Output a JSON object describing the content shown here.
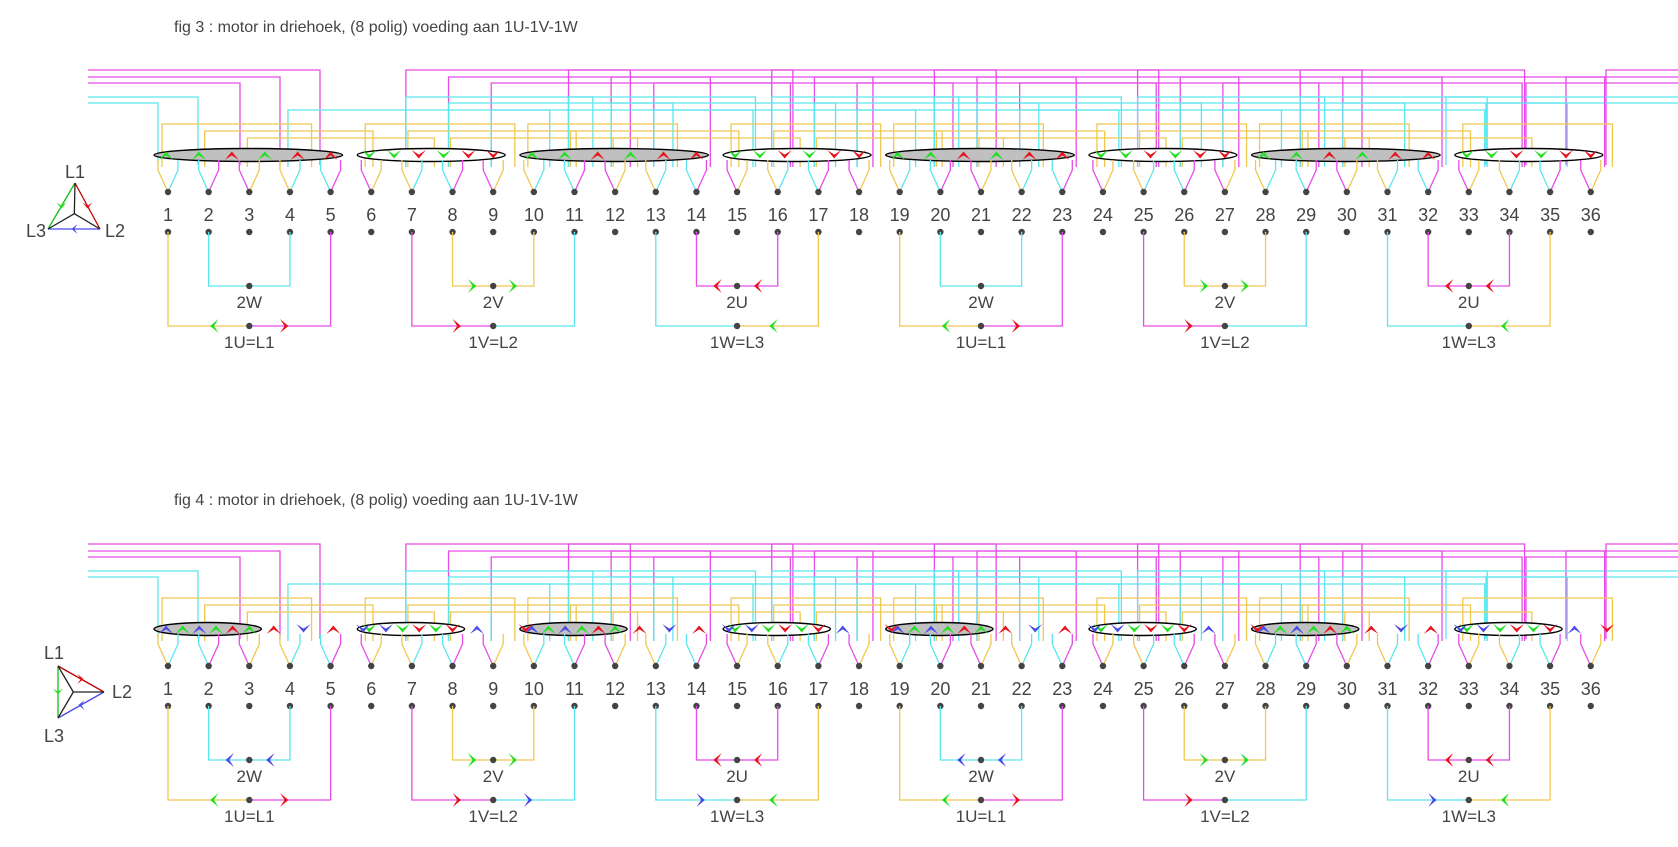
{
  "colors": {
    "L1": "#e64ce6",
    "L2": "#f0c850",
    "L3": "#5ae6ee",
    "red": "#e8101a",
    "green": "#20e020",
    "blue": "#4a4ae8",
    "dot": "#444444",
    "coil_fill": "#c0c0c0"
  },
  "slot_count": 36,
  "slot_numbers": [
    "1",
    "2",
    "3",
    "4",
    "5",
    "6",
    "7",
    "8",
    "9",
    "10",
    "11",
    "12",
    "13",
    "14",
    "15",
    "16",
    "17",
    "18",
    "19",
    "20",
    "21",
    "22",
    "23",
    "24",
    "25",
    "26",
    "27",
    "28",
    "29",
    "30",
    "31",
    "32",
    "33",
    "34",
    "35",
    "36"
  ],
  "figures": [
    {
      "id": "fig3",
      "title": "fig 3 : motor in driehoek,   (8 polig)   voeding aan 1U-1V-1W",
      "triangle": {
        "top": "L1",
        "left": "L3",
        "right": "L2",
        "layout": "up"
      },
      "coil_groups": [
        {
          "slots": [
            1,
            5
          ],
          "filled": true,
          "arrows": [
            "green-up",
            "green-up",
            "red-up",
            "green-up",
            "red-up",
            "red-up"
          ]
        },
        {
          "slots": [
            6,
            9
          ],
          "filled": false,
          "arrows": [
            "green-down",
            "green-down",
            "red-down",
            "green-down",
            "red-down",
            "red-down"
          ]
        },
        {
          "slots": [
            10,
            14
          ],
          "filled": true,
          "arrows": [
            "green-up",
            "green-up",
            "red-up",
            "green-up",
            "red-up",
            "red-up"
          ]
        },
        {
          "slots": [
            15,
            18
          ],
          "filled": false,
          "arrows": [
            "green-down",
            "green-down",
            "red-down",
            "green-down",
            "red-down",
            "red-down"
          ]
        },
        {
          "slots": [
            19,
            23
          ],
          "filled": true,
          "arrows": [
            "green-up",
            "green-up",
            "red-up",
            "green-up",
            "red-up",
            "red-up"
          ]
        },
        {
          "slots": [
            24,
            27
          ],
          "filled": false,
          "arrows": [
            "green-down",
            "green-down",
            "red-down",
            "green-down",
            "red-down",
            "red-down"
          ]
        },
        {
          "slots": [
            28,
            32
          ],
          "filled": true,
          "arrows": [
            "green-up",
            "green-up",
            "red-up",
            "green-up",
            "red-up",
            "red-up"
          ]
        },
        {
          "slots": [
            33,
            36
          ],
          "filled": false,
          "arrows": [
            "green-down",
            "green-down",
            "red-down",
            "green-down",
            "red-down",
            "red-down"
          ]
        }
      ],
      "loose_arrows": [],
      "bottom_groups": [
        {
          "inner": [
            2,
            4
          ],
          "outer": [
            1,
            5
          ],
          "inner_label": "2W",
          "outer_label": "1U=L1",
          "inner_color": "L3",
          "outer_left": "L2",
          "outer_right": "L1",
          "inner_arrows": [],
          "outer_arrows": [
            {
              "pos": "left",
              "color": "green",
              "dir": "left"
            },
            {
              "pos": "right",
              "color": "red",
              "dir": "right"
            }
          ]
        },
        {
          "inner": [
            8,
            10
          ],
          "outer": [
            7,
            11
          ],
          "inner_label": "2V",
          "outer_label": "1V=L2",
          "inner_color": "L2",
          "outer_left": "L1",
          "outer_right": "L3",
          "inner_arrows": [
            {
              "pos": "left",
              "color": "green",
              "dir": "right"
            },
            {
              "pos": "right",
              "color": "green",
              "dir": "right"
            }
          ],
          "outer_arrows": [
            {
              "pos": "left",
              "color": "red",
              "dir": "right"
            }
          ]
        },
        {
          "inner": [
            14,
            16
          ],
          "outer": [
            13,
            17
          ],
          "inner_label": "2U",
          "outer_label": "1W=L3",
          "inner_color": "L1",
          "outer_left": "L3",
          "outer_right": "L2",
          "inner_arrows": [
            {
              "pos": "left",
              "color": "red",
              "dir": "left"
            },
            {
              "pos": "right",
              "color": "red",
              "dir": "left"
            }
          ],
          "outer_arrows": [
            {
              "pos": "right",
              "color": "green",
              "dir": "left"
            }
          ]
        },
        {
          "inner": [
            20,
            22
          ],
          "outer": [
            19,
            23
          ],
          "inner_label": "2W",
          "outer_label": "1U=L1",
          "inner_color": "L3",
          "outer_left": "L2",
          "outer_right": "L1",
          "inner_arrows": [],
          "outer_arrows": [
            {
              "pos": "left",
              "color": "green",
              "dir": "left"
            },
            {
              "pos": "right",
              "color": "red",
              "dir": "right"
            }
          ]
        },
        {
          "inner": [
            26,
            28
          ],
          "outer": [
            25,
            29
          ],
          "inner_label": "2V",
          "outer_label": "1V=L2",
          "inner_color": "L2",
          "outer_left": "L1",
          "outer_right": "L3",
          "inner_arrows": [
            {
              "pos": "left",
              "color": "green",
              "dir": "right"
            },
            {
              "pos": "right",
              "color": "green",
              "dir": "right"
            }
          ],
          "outer_arrows": [
            {
              "pos": "left",
              "color": "red",
              "dir": "right"
            }
          ]
        },
        {
          "inner": [
            32,
            34
          ],
          "outer": [
            31,
            35
          ],
          "inner_label": "2U",
          "outer_label": "1W=L3",
          "inner_color": "L1",
          "outer_left": "L3",
          "outer_right": "L2",
          "inner_arrows": [
            {
              "pos": "left",
              "color": "red",
              "dir": "left"
            },
            {
              "pos": "right",
              "color": "red",
              "dir": "left"
            }
          ],
          "outer_arrows": [
            {
              "pos": "right",
              "color": "green",
              "dir": "left"
            }
          ]
        }
      ]
    },
    {
      "id": "fig4",
      "title": "fig 4 : motor in driehoek,  (8 polig)   voeding aan 1U-1V-1W",
      "triangle": {
        "top": "L1",
        "left": "L3",
        "right": "L2",
        "layout": "right"
      },
      "coil_groups": [
        {
          "slots": [
            1,
            3
          ],
          "filled": true,
          "arrows": [
            "blue-up",
            "green-up",
            "blue-up",
            "green-up",
            "red-up",
            "green-up"
          ]
        },
        {
          "slots": [
            6,
            8
          ],
          "filled": false,
          "arrows": [
            "green-down",
            "blue-down",
            "green-down",
            "red-down",
            "green-down",
            "red-down"
          ]
        },
        {
          "slots": [
            10,
            12
          ],
          "filled": true,
          "arrows": [
            "blue-up",
            "green-up",
            "blue-up",
            "green-up",
            "red-up",
            "green-up"
          ]
        },
        {
          "slots": [
            15,
            17
          ],
          "filled": false,
          "arrows": [
            "green-down",
            "blue-down",
            "green-down",
            "red-down",
            "green-down",
            "red-down"
          ]
        },
        {
          "slots": [
            19,
            21
          ],
          "filled": true,
          "arrows": [
            "blue-up",
            "green-up",
            "blue-up",
            "green-up",
            "red-up",
            "green-up"
          ]
        },
        {
          "slots": [
            24,
            26
          ],
          "filled": false,
          "arrows": [
            "green-down",
            "blue-down",
            "green-down",
            "red-down",
            "green-down",
            "red-down"
          ]
        },
        {
          "slots": [
            28,
            30
          ],
          "filled": true,
          "arrows": [
            "blue-up",
            "green-up",
            "blue-up",
            "green-up",
            "red-up",
            "green-up"
          ]
        },
        {
          "slots": [
            33,
            35
          ],
          "filled": false,
          "arrows": [
            "green-down",
            "blue-down",
            "green-down",
            "red-down",
            "green-down",
            "red-down"
          ]
        }
      ],
      "loose_arrows": [
        "red-up",
        "blue-down",
        "red-up",
        "blue-down",
        "blue-up",
        "red-down"
      ],
      "bottom_groups": [
        {
          "inner": [
            2,
            4
          ],
          "outer": [
            1,
            5
          ],
          "inner_label": "2W",
          "outer_label": "1U=L1",
          "inner_color": "L3",
          "outer_left": "L2",
          "outer_right": "L1",
          "inner_arrows": [
            {
              "pos": "left",
              "color": "blue",
              "dir": "left"
            },
            {
              "pos": "right",
              "color": "blue",
              "dir": "left"
            }
          ],
          "outer_arrows": [
            {
              "pos": "left",
              "color": "green",
              "dir": "left"
            },
            {
              "pos": "right",
              "color": "red",
              "dir": "right"
            }
          ]
        },
        {
          "inner": [
            8,
            10
          ],
          "outer": [
            7,
            11
          ],
          "inner_label": "2V",
          "outer_label": "1V=L2",
          "inner_color": "L2",
          "outer_left": "L1",
          "outer_right": "L3",
          "inner_arrows": [
            {
              "pos": "left",
              "color": "green",
              "dir": "right"
            },
            {
              "pos": "right",
              "color": "green",
              "dir": "right"
            }
          ],
          "outer_arrows": [
            {
              "pos": "left",
              "color": "red",
              "dir": "right"
            },
            {
              "pos": "right",
              "color": "blue",
              "dir": "right"
            }
          ]
        },
        {
          "inner": [
            14,
            16
          ],
          "outer": [
            13,
            17
          ],
          "inner_label": "2U",
          "outer_label": "1W=L3",
          "inner_color": "L1",
          "outer_left": "L3",
          "outer_right": "L2",
          "inner_arrows": [
            {
              "pos": "left",
              "color": "red",
              "dir": "left"
            },
            {
              "pos": "right",
              "color": "red",
              "dir": "left"
            }
          ],
          "outer_arrows": [
            {
              "pos": "left",
              "color": "blue",
              "dir": "right"
            },
            {
              "pos": "right",
              "color": "green",
              "dir": "left"
            }
          ]
        },
        {
          "inner": [
            20,
            22
          ],
          "outer": [
            19,
            23
          ],
          "inner_label": "2W",
          "outer_label": "1U=L1",
          "inner_color": "L3",
          "outer_left": "L2",
          "outer_right": "L1",
          "inner_arrows": [
            {
              "pos": "left",
              "color": "blue",
              "dir": "left"
            },
            {
              "pos": "right",
              "color": "blue",
              "dir": "left"
            }
          ],
          "outer_arrows": [
            {
              "pos": "left",
              "color": "green",
              "dir": "left"
            },
            {
              "pos": "right",
              "color": "red",
              "dir": "right"
            }
          ]
        },
        {
          "inner": [
            26,
            28
          ],
          "outer": [
            25,
            29
          ],
          "inner_label": "2V",
          "outer_label": "1V=L2",
          "inner_color": "L2",
          "outer_left": "L1",
          "outer_right": "L3",
          "inner_arrows": [
            {
              "pos": "left",
              "color": "green",
              "dir": "right"
            },
            {
              "pos": "right",
              "color": "green",
              "dir": "right"
            }
          ],
          "outer_arrows": [
            {
              "pos": "left",
              "color": "red",
              "dir": "right"
            }
          ]
        },
        {
          "inner": [
            32,
            34
          ],
          "outer": [
            31,
            35
          ],
          "inner_label": "2U",
          "outer_label": "1W=L3",
          "inner_color": "L1",
          "outer_left": "L3",
          "outer_right": "L2",
          "inner_arrows": [
            {
              "pos": "left",
              "color": "red",
              "dir": "left"
            },
            {
              "pos": "right",
              "color": "red",
              "dir": "left"
            }
          ],
          "outer_arrows": [
            {
              "pos": "left",
              "color": "blue",
              "dir": "right"
            },
            {
              "pos": "right",
              "color": "green",
              "dir": "left"
            }
          ]
        }
      ]
    }
  ]
}
